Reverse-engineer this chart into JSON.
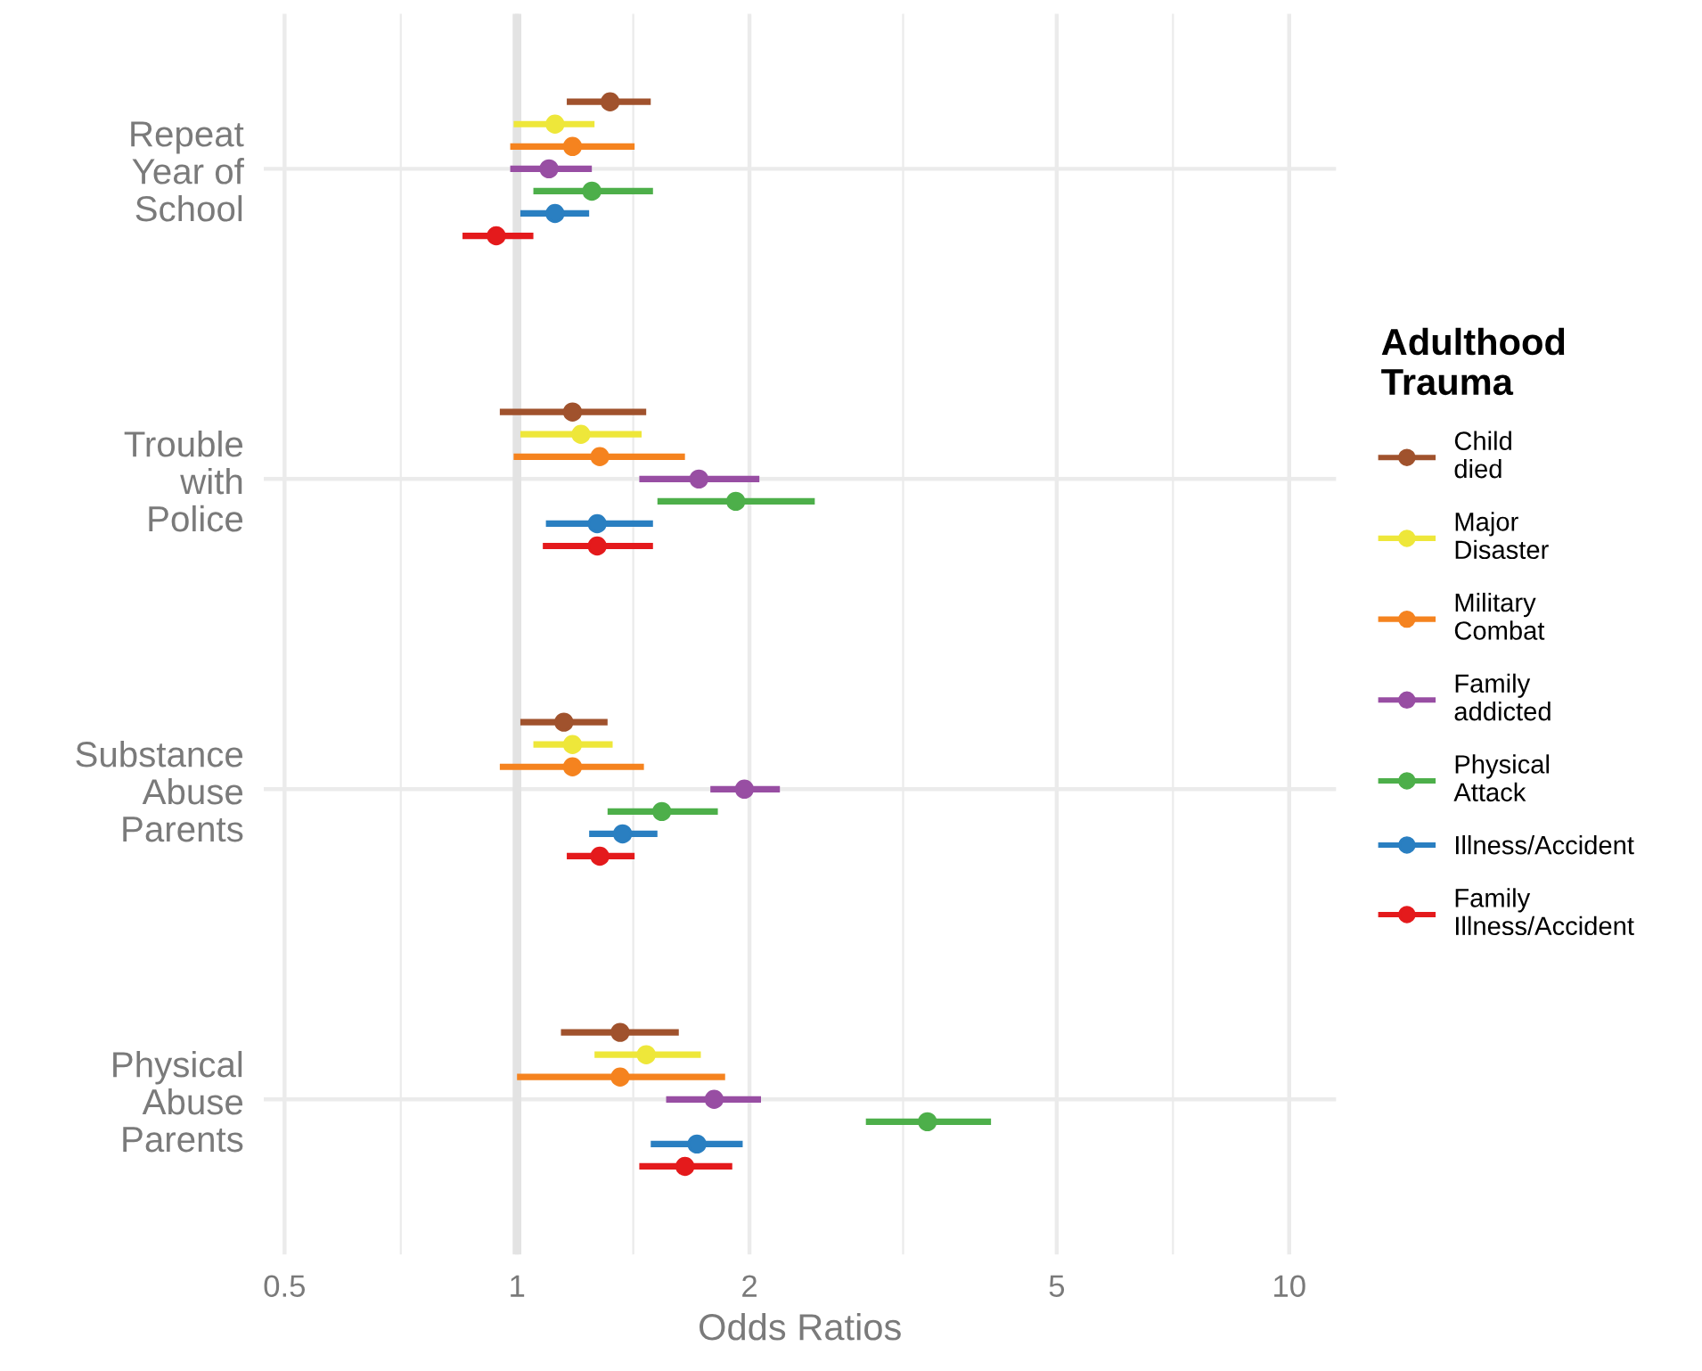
{
  "chart_data": {
    "type": "scatter",
    "orientation": "horizontal",
    "xlabel": "Odds Ratios",
    "legend_title": "Adulthood\nTrauma",
    "categories": [
      "Repeat\nYear of\nSchool",
      "Trouble\nwith\nPolice",
      "Substance\nAbuse\nParents",
      "Physical\nAbuse\nParents"
    ],
    "series": [
      {
        "name": "Child\ndied",
        "color": "#a0522d",
        "values": [
          1.32,
          1.18,
          1.15,
          1.36
        ],
        "errors": [
          [
            1.16,
            1.49
          ],
          [
            0.95,
            1.47
          ],
          [
            1.01,
            1.31
          ],
          [
            1.14,
            1.62
          ]
        ]
      },
      {
        "name": "Major\nDisaster",
        "color": "#eee73a",
        "values": [
          1.12,
          1.21,
          1.18,
          1.47
        ],
        "errors": [
          [
            0.99,
            1.26
          ],
          [
            1.01,
            1.45
          ],
          [
            1.05,
            1.33
          ],
          [
            1.26,
            1.73
          ]
        ]
      },
      {
        "name": "Military\nCombat",
        "color": "#f5831f",
        "values": [
          1.18,
          1.28,
          1.18,
          1.36
        ],
        "errors": [
          [
            0.98,
            1.42
          ],
          [
            0.99,
            1.65
          ],
          [
            0.95,
            1.46
          ],
          [
            1.0,
            1.86
          ]
        ]
      },
      {
        "name": "Family\naddicted",
        "color": "#984ea3",
        "values": [
          1.1,
          1.72,
          1.97,
          1.8
        ],
        "errors": [
          [
            0.98,
            1.25
          ],
          [
            1.44,
            2.06
          ],
          [
            1.78,
            2.19
          ],
          [
            1.56,
            2.07
          ]
        ]
      },
      {
        "name": "Physical\nAttack",
        "color": "#4daf4a",
        "values": [
          1.25,
          1.92,
          1.54,
          3.4
        ],
        "errors": [
          [
            1.05,
            1.5
          ],
          [
            1.52,
            2.43
          ],
          [
            1.31,
            1.82
          ],
          [
            2.83,
            4.11
          ]
        ]
      },
      {
        "name": "Illness/Accident",
        "color": "#2a7fc1",
        "values": [
          1.12,
          1.27,
          1.37,
          1.71
        ],
        "errors": [
          [
            1.01,
            1.24
          ],
          [
            1.09,
            1.5
          ],
          [
            1.24,
            1.52
          ],
          [
            1.49,
            1.96
          ]
        ]
      },
      {
        "name": "Family\nIllness/Accident",
        "color": "#e41a1c",
        "values": [
          0.94,
          1.27,
          1.28,
          1.65
        ],
        "errors": [
          [
            0.85,
            1.05
          ],
          [
            1.08,
            1.5
          ],
          [
            1.16,
            1.42
          ],
          [
            1.44,
            1.9
          ]
        ]
      }
    ],
    "xlim": [
      0.47,
      11.5
    ],
    "xticks": [
      0.5,
      1,
      2,
      5,
      10
    ],
    "log": "x",
    "grid": true,
    "ref_lines": [
      {
        "axis": "x",
        "value": 1,
        "color": "#e3e3e3"
      }
    ],
    "legend": "right",
    "marker": "circle",
    "line_style": "solid"
  }
}
